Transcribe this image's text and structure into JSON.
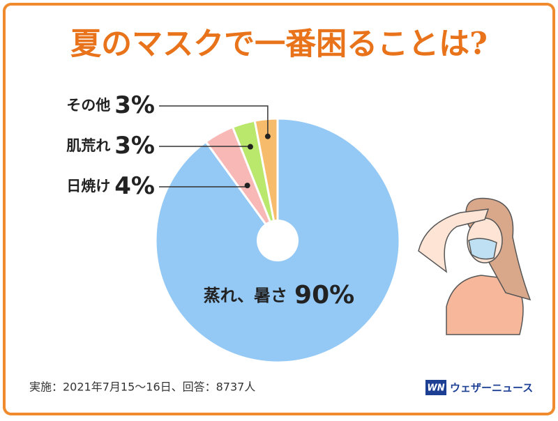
{
  "chart_data": {
    "type": "pie",
    "title": "夏のマスクで一番困ることは?",
    "categories": [
      "蒸れ、暑さ",
      "日焼け",
      "肌荒れ",
      "その他"
    ],
    "values": [
      90,
      4,
      3,
      3
    ],
    "value_labels": [
      "90%",
      "4%",
      "3%",
      "3%"
    ],
    "colors": [
      "#94c9f6",
      "#f8b8b6",
      "#b9e86c",
      "#f7bb6c"
    ],
    "footnote": "実施：2021年7月15～16日、回答：8737人",
    "logo_mark": "WN",
    "logo_text": "ウェザーニュース"
  }
}
